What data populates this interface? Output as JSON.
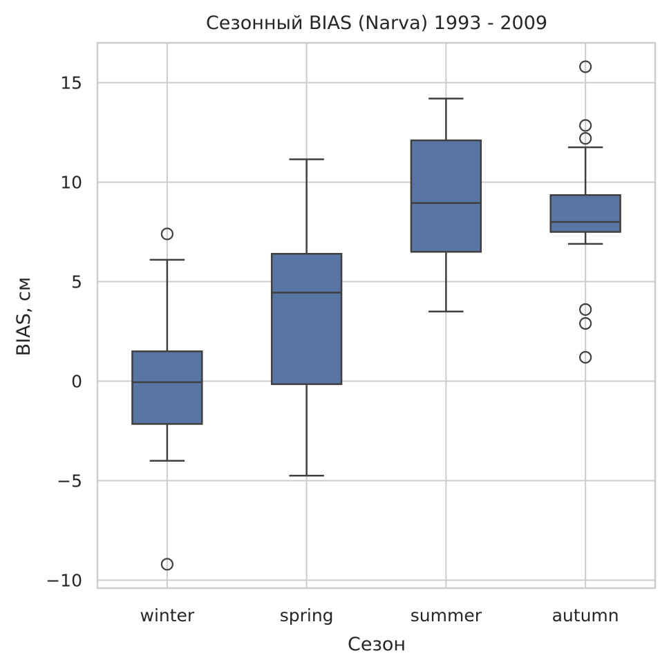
{
  "chart_data": {
    "type": "box",
    "title": "Сезонный BIAS (Narva) 1993 - 2009",
    "xlabel": "Сезон",
    "ylabel": "BIAS, см",
    "ylim": [
      -10.4,
      17.0
    ],
    "yticks": [
      -10,
      -5,
      0,
      5,
      10,
      15
    ],
    "ytick_labels": [
      "−10",
      "−5",
      "0",
      "5",
      "10",
      "15"
    ],
    "grid": true,
    "categories": [
      "winter",
      "spring",
      "summer",
      "autumn"
    ],
    "boxes": [
      {
        "category": "winter",
        "whisker_low": -4.0,
        "q1": -2.15,
        "median": -0.05,
        "q3": 1.5,
        "whisker_high": 6.1,
        "outliers": [
          7.4,
          -9.2
        ]
      },
      {
        "category": "spring",
        "whisker_low": -4.75,
        "q1": -0.15,
        "median": 4.45,
        "q3": 6.4,
        "whisker_high": 11.15,
        "outliers": []
      },
      {
        "category": "summer",
        "whisker_low": 3.5,
        "q1": 6.5,
        "median": 8.95,
        "q3": 12.1,
        "whisker_high": 14.2,
        "outliers": []
      },
      {
        "category": "autumn",
        "whisker_low": 6.9,
        "q1": 7.5,
        "median": 8.0,
        "q3": 9.35,
        "whisker_high": 11.75,
        "outliers": [
          15.8,
          12.85,
          12.2,
          3.6,
          2.9,
          1.2
        ]
      }
    ],
    "colors": {
      "box_fill": "#5875a4",
      "line": "#3f3f3f",
      "grid": "#cccccc",
      "frame": "#cccccc"
    }
  }
}
